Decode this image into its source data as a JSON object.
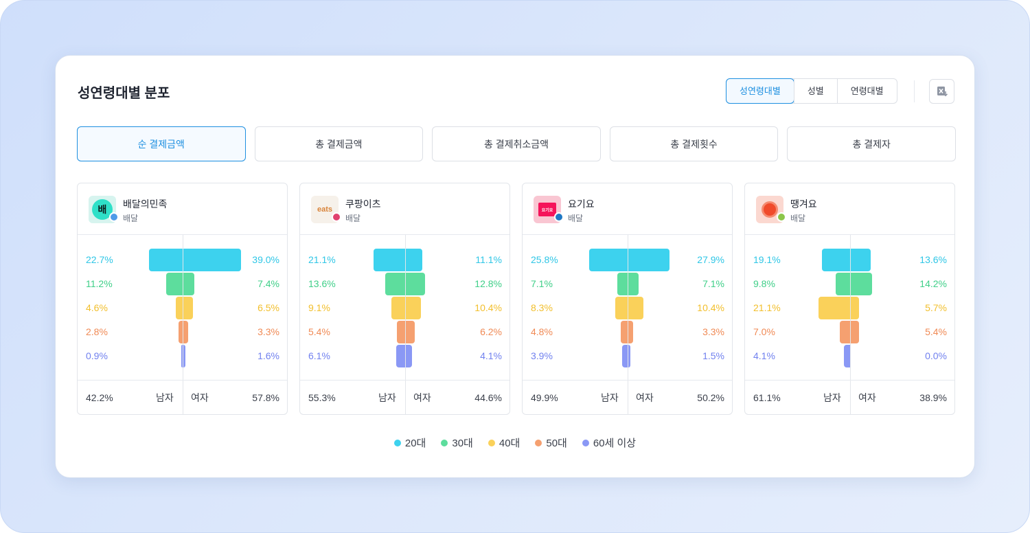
{
  "title": "성연령대별 분포",
  "view_options": [
    {
      "label": "성연령대별",
      "active": true
    },
    {
      "label": "성별",
      "active": false
    },
    {
      "label": "연령대별",
      "active": false
    }
  ],
  "export_icon": "excel-download-icon",
  "metrics": [
    {
      "label": "순 결제금액",
      "active": true
    },
    {
      "label": "총 결제금액",
      "active": false
    },
    {
      "label": "총 결제취소금액",
      "active": false
    },
    {
      "label": "총 결제횟수",
      "active": false
    },
    {
      "label": "총 결제자",
      "active": false
    }
  ],
  "colors": {
    "20대": "#3dd2ee",
    "30대": "#5ddd9d",
    "40대": "#fad15a",
    "50대": "#f5a070",
    "60세 이상": "#8a98f5",
    "accent": "#1d8fe0"
  },
  "label_colors": [
    "#2ec6e6",
    "#3fcf88",
    "#f2bf2c",
    "#f08a55",
    "#7181ef"
  ],
  "panels": [
    {
      "name": "배달의민족",
      "category": "배달",
      "logo_text": "배",
      "logo_bg": "#d7f4ef",
      "logo_fg": "#0b1a1a",
      "dot_color": "#4f9be8",
      "male": [
        "22.7%",
        "11.2%",
        "4.6%",
        "2.8%",
        "0.9%"
      ],
      "female": [
        "39.0%",
        "7.4%",
        "6.5%",
        "3.3%",
        "1.6%"
      ],
      "male_values": [
        22.7,
        11.2,
        4.6,
        2.8,
        0.9
      ],
      "female_values": [
        39.0,
        7.4,
        6.5,
        3.3,
        1.6
      ],
      "male_total": "42.2%",
      "male_label": "남자",
      "female_label": "여자",
      "female_total": "57.8%"
    },
    {
      "name": "쿠팡이츠",
      "category": "배달",
      "logo_text": "eats",
      "logo_bg": "#f6f1ea",
      "logo_fg": "#d9843a",
      "dot_color": "#e0416e",
      "male": [
        "21.1%",
        "13.6%",
        "9.1%",
        "5.4%",
        "6.1%"
      ],
      "female": [
        "11.1%",
        "12.8%",
        "10.4%",
        "6.2%",
        "4.1%"
      ],
      "male_values": [
        21.1,
        13.6,
        9.1,
        5.4,
        6.1
      ],
      "female_values": [
        11.1,
        12.8,
        10.4,
        6.2,
        4.1
      ],
      "male_total": "55.3%",
      "male_label": "남자",
      "female_label": "여자",
      "female_total": "44.6%"
    },
    {
      "name": "요기요",
      "category": "배달",
      "logo_text": "요기요",
      "logo_bg": "#f9c6d2",
      "logo_fg": "#ffffff",
      "dot_color": "#1f78c4",
      "male": [
        "25.8%",
        "7.1%",
        "8.3%",
        "4.8%",
        "3.9%"
      ],
      "female": [
        "27.9%",
        "7.1%",
        "10.4%",
        "3.3%",
        "1.5%"
      ],
      "male_values": [
        25.8,
        7.1,
        8.3,
        4.8,
        3.9
      ],
      "female_values": [
        27.9,
        7.1,
        10.4,
        3.3,
        1.5
      ],
      "male_total": "49.9%",
      "male_label": "남자",
      "female_label": "여자",
      "female_total": "50.2%"
    },
    {
      "name": "땡겨요",
      "category": "배달",
      "logo_text": "",
      "logo_bg": "#fbd8d0",
      "logo_fg": "#f04a2a",
      "dot_color": "#8cc64a",
      "male": [
        "19.1%",
        "9.8%",
        "21.1%",
        "7.0%",
        "4.1%"
      ],
      "female": [
        "13.6%",
        "14.2%",
        "5.7%",
        "5.4%",
        "0.0%"
      ],
      "male_values": [
        19.1,
        9.8,
        21.1,
        7.0,
        4.1
      ],
      "female_values": [
        13.6,
        14.2,
        5.7,
        5.4,
        0.0
      ],
      "male_total": "61.1%",
      "male_label": "남자",
      "female_label": "여자",
      "female_total": "38.9%"
    }
  ],
  "legend": [
    "20대",
    "30대",
    "40대",
    "50대",
    "60세 이상"
  ]
}
